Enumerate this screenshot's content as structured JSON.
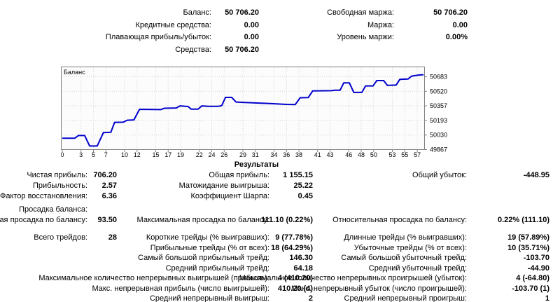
{
  "summary": {
    "left": [
      {
        "label": "Баланс:",
        "value": "50 706.20"
      },
      {
        "label": "Кредитные средства:",
        "value": "0.00"
      },
      {
        "label": "Плавающая прибыль/убыток:",
        "value": "0.00"
      },
      {
        "label": "Средства:",
        "value": "50 706.20"
      }
    ],
    "right": [
      {
        "label": "Свободная маржа:",
        "value": "50 706.20"
      },
      {
        "label": "Маржа:",
        "value": "0.00"
      },
      {
        "label": "Уровень маржи:",
        "value": "0.00%"
      }
    ]
  },
  "results": {
    "title": "Результаты",
    "rows": [
      {
        "c1l": "Чистая прибыль:",
        "c1v": "706.20",
        "c2l": "Общая прибыль:",
        "c2v": "1 155.15",
        "c3l": "Общий убыток:",
        "c3v": "-448.95"
      },
      {
        "c1l": "Прибыльность:",
        "c1v": "2.57",
        "c2l": "Матожидание выигрыша:",
        "c2v": "25.22"
      },
      {
        "c1l": "Фактор восстановления:",
        "c1v": "6.36",
        "c2l": "Коэффициент Шарпа:",
        "c2v": "0.45"
      },
      {
        "c1l": "Просадка баланса:"
      },
      {
        "c1l": "Абсолютная просадка по балансу:",
        "c1v": "93.50",
        "c2l": "Максимальная просадка по балансу:",
        "c2v": "111.10 (0.22%)",
        "c3l": "Относительная просадка по балансу:",
        "c3v": "0.22% (111.10)"
      },
      {
        "c1l": "Всего трейдов:",
        "c1v": "28",
        "c2l": "Короткие трейды (% выигравших):",
        "c2v": "9 (77.78%)",
        "c3l": "Длинные трейды (% выигравших):",
        "c3v": "19 (57.89%)"
      },
      {
        "c2l": "Прибыльные трейды (% от всех):",
        "c2v": "18 (64.29%)",
        "c3l": "Убыточные трейды (% от всех):",
        "c3v": "10 (35.71%)"
      },
      {
        "c2l": "Самый большой прибыльный трейд:",
        "c2v": "146.30",
        "c3l": "Самый большой убыточный трейд:",
        "c3v": "-103.70"
      },
      {
        "c2l": "Средний прибыльный трейд:",
        "c2v": "64.18",
        "c3l": "Средний убыточный трейд:",
        "c3v": "-44.90"
      },
      {
        "c2l": "Максимальное количество непрерывных выигрышей (прибыль):",
        "c2v": "4 (410.20)",
        "c3l": "Максимальное количество непрерывных проигрышей (убыток):",
        "c3v": "4 (-64.80)"
      },
      {
        "c2l": "Макс. непрерывная прибыль (число выигрышей):",
        "c2v": "410.20 (4)",
        "c3l": "Макс. непрерывный убыток (число проигрышей):",
        "c3v": "-103.70 (1)"
      },
      {
        "c2l": "Средний непрерывный выигрыш:",
        "c2v": "2",
        "c3l": "Средний непрерывный проигрыш:",
        "c3v": "1"
      }
    ]
  },
  "chart_data": {
    "type": "line",
    "title": "Баланс",
    "x_range": [
      0,
      58
    ],
    "y_range": [
      49867,
      50793
    ],
    "x_ticks": [
      0,
      3,
      5,
      7,
      10,
      12,
      15,
      17,
      19,
      22,
      24,
      26,
      29,
      31,
      34,
      36,
      38,
      41,
      43,
      46,
      48,
      50,
      53,
      55,
      57
    ],
    "y_ticks": [
      50683,
      50520,
      50357,
      50193,
      50030,
      49867
    ],
    "grid": "dotted",
    "grid_color": "#D6D6D6",
    "border_color": "#808080",
    "plot_bg": "#FCFCFC",
    "series": [
      {
        "name": "Баланс",
        "color": "#0000CC",
        "points": [
          [
            0,
            49995
          ],
          [
            2,
            49995
          ],
          [
            2.6,
            50025
          ],
          [
            3.6,
            50025
          ],
          [
            4.4,
            49907
          ],
          [
            5.6,
            49907
          ],
          [
            6.6,
            50057
          ],
          [
            7.8,
            50062
          ],
          [
            8.4,
            50172
          ],
          [
            9.8,
            50174
          ],
          [
            10.4,
            50196
          ],
          [
            11.5,
            50200
          ],
          [
            12.4,
            50318
          ],
          [
            15.8,
            50315
          ],
          [
            16.4,
            50330
          ],
          [
            18.3,
            50333
          ],
          [
            18.9,
            50357
          ],
          [
            20.2,
            50350
          ],
          [
            20.7,
            50320
          ],
          [
            21.8,
            50320
          ],
          [
            22.4,
            50357
          ],
          [
            23.5,
            50352
          ],
          [
            25.1,
            50352
          ],
          [
            25.6,
            50360
          ],
          [
            26.2,
            50452
          ],
          [
            27.2,
            50452
          ],
          [
            27.9,
            50400
          ],
          [
            29,
            50396
          ],
          [
            33,
            50384
          ],
          [
            36,
            50373
          ],
          [
            37.4,
            50371
          ],
          [
            38.2,
            50448
          ],
          [
            39.5,
            50450
          ],
          [
            40.2,
            50524
          ],
          [
            43.2,
            50527
          ],
          [
            43.8,
            50532
          ],
          [
            44.6,
            50532
          ],
          [
            45.2,
            50614
          ],
          [
            46.1,
            50614
          ],
          [
            46.8,
            50507
          ],
          [
            48.1,
            50507
          ],
          [
            48.7,
            50580
          ],
          [
            49.9,
            50580
          ],
          [
            50.5,
            50640
          ],
          [
            51.6,
            50640
          ],
          [
            52.2,
            50586
          ],
          [
            53.6,
            50590
          ],
          [
            54.2,
            50654
          ],
          [
            55.5,
            50657
          ],
          [
            56.1,
            50690
          ],
          [
            57.2,
            50702
          ],
          [
            58,
            50706
          ]
        ]
      }
    ]
  }
}
